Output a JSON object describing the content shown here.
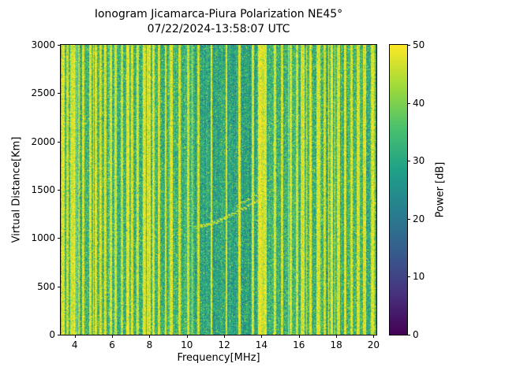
{
  "figure": {
    "background": "#ffffff",
    "text_color": "#000000"
  },
  "chart_data": {
    "type": "heatmap",
    "title": "Ionogram Jicamarca-Piura Polarization NE45°",
    "subtitle": "07/22/2024-13:58:07 UTC",
    "xlabel": "Frequency[MHz]",
    "ylabel": "Virtual Distance[Km]",
    "xlim": [
      3.25,
      20.15
    ],
    "ylim": [
      0,
      3000
    ],
    "xticks": [
      4,
      6,
      8,
      10,
      12,
      14,
      16,
      18,
      20
    ],
    "yticks": [
      0,
      500,
      1000,
      1500,
      2000,
      2500,
      3000
    ],
    "grid": false,
    "colorbar": {
      "label": "Power [dB]",
      "min": 0,
      "max": 50,
      "ticks": [
        0,
        10,
        20,
        30,
        40,
        50
      ],
      "colormap": "viridis",
      "position": "right"
    },
    "colormap_stops": [
      "#440154",
      "#46327e",
      "#365c8d",
      "#277f8e",
      "#1fa187",
      "#4ac16d",
      "#a0da39",
      "#fde725"
    ],
    "noise": {
      "description": "speckled background noise over whole band with many bright vertical RFI stripes",
      "background_mean_db": 33,
      "background_std_db": 4.5,
      "quiet_band_mhz": [
        10.35,
        13.75
      ],
      "quiet_mean_db": 29.5,
      "random_stripe_probability": 0.06,
      "stripe_power_db": 48
    },
    "rfi_stripes": [
      [
        2.75,
        0.05
      ],
      [
        2.9,
        0.04
      ],
      [
        3.35,
        0.05
      ],
      [
        3.6,
        0.04
      ],
      [
        3.8,
        0.05
      ],
      [
        3.95,
        0.06
      ],
      [
        4.2,
        0.04
      ],
      [
        4.45,
        0.04
      ],
      [
        4.8,
        0.05
      ],
      [
        5.1,
        0.04
      ],
      [
        5.35,
        0.05
      ],
      [
        5.6,
        0.04
      ],
      [
        5.9,
        0.05
      ],
      [
        6.15,
        0.04
      ],
      [
        6.5,
        0.05
      ],
      [
        6.8,
        0.04
      ],
      [
        7.05,
        0.05
      ],
      [
        7.35,
        0.04
      ],
      [
        7.7,
        0.05
      ],
      [
        7.95,
        0.08
      ],
      [
        8.2,
        0.05
      ],
      [
        8.5,
        0.04
      ],
      [
        8.85,
        0.04
      ],
      [
        9.15,
        0.05
      ],
      [
        9.6,
        0.04
      ],
      [
        10.05,
        0.05
      ],
      [
        10.6,
        0.03
      ],
      [
        11.3,
        0.03
      ],
      [
        12.1,
        0.03
      ],
      [
        12.8,
        0.03
      ],
      [
        13.5,
        0.04
      ],
      [
        13.95,
        0.12
      ],
      [
        14.2,
        0.05
      ],
      [
        14.7,
        0.04
      ],
      [
        15.1,
        0.04
      ],
      [
        15.55,
        0.05
      ],
      [
        15.9,
        0.04
      ],
      [
        16.2,
        0.07
      ],
      [
        16.6,
        0.04
      ],
      [
        17.0,
        0.05
      ],
      [
        17.35,
        0.04
      ],
      [
        17.75,
        0.04
      ],
      [
        18.1,
        0.06
      ],
      [
        18.45,
        0.04
      ],
      [
        18.8,
        0.05
      ],
      [
        19.15,
        0.04
      ],
      [
        19.5,
        0.05
      ],
      [
        19.95,
        0.09
      ]
    ],
    "echo_trace": {
      "description": "faint F-region echo trace rising with frequency",
      "points_mhz_km": [
        [
          10.4,
          1110
        ],
        [
          11.0,
          1140
        ],
        [
          11.5,
          1170
        ],
        [
          12.0,
          1210
        ],
        [
          12.5,
          1255
        ],
        [
          13.0,
          1305
        ],
        [
          13.3,
          1340
        ],
        [
          13.6,
          1375
        ],
        [
          13.85,
          1405
        ]
      ],
      "second_branch_mhz_km": [
        [
          12.9,
          1360
        ],
        [
          13.2,
          1395
        ],
        [
          13.5,
          1430
        ],
        [
          13.7,
          1450
        ]
      ]
    },
    "seed": 20240722
  }
}
